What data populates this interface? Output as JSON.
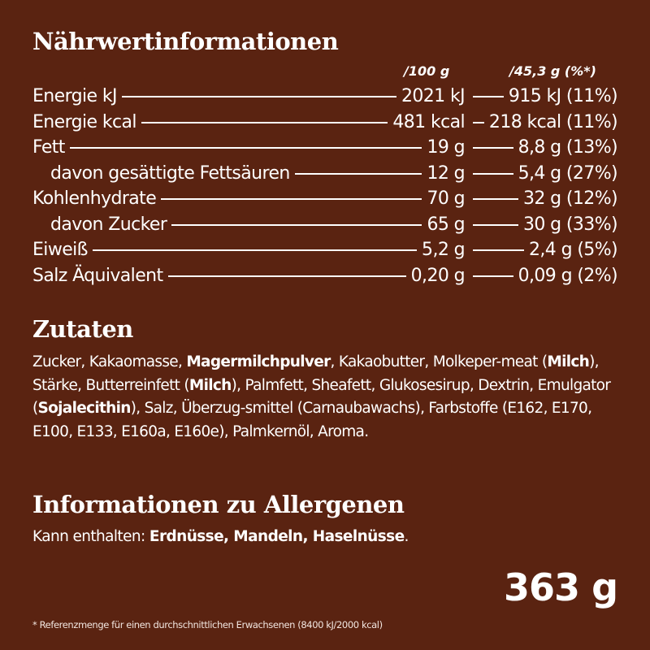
{
  "nutrition": {
    "title": "Nährwertinformationen",
    "col1_header": "/100 g",
    "col2_header": "/45,3 g (%*)",
    "rows": [
      {
        "label": "Energie kJ",
        "per100": "2021 kJ",
        "portion": "915 kJ (11%)",
        "indent": false
      },
      {
        "label": "Energie kcal",
        "per100": "481 kcal",
        "portion": "218 kcal (11%)",
        "indent": false
      },
      {
        "label": "Fett",
        "per100": "19 g",
        "portion": "8,8 g (13%)",
        "indent": false
      },
      {
        "label": "davon gesättigte Fettsäuren",
        "per100": "12 g",
        "portion": "5,4 g (27%)",
        "indent": true
      },
      {
        "label": "Kohlenhydrate",
        "per100": "70 g",
        "portion": "32 g (12%)",
        "indent": false
      },
      {
        "label": "davon Zucker",
        "per100": "65 g",
        "portion": "30 g (33%)",
        "indent": true
      },
      {
        "label": "Eiweiß",
        "per100": "5,2 g",
        "portion": "2,4 g (5%)",
        "indent": false
      },
      {
        "label": "Salz Äquivalent",
        "per100": "0,20 g",
        "portion": "0,09 g (2%)",
        "indent": false
      }
    ]
  },
  "ingredients": {
    "title": "Zutaten",
    "parts": [
      {
        "text": "Zucker, Kakaomasse, ",
        "bold": false
      },
      {
        "text": "Magermilchpulver",
        "bold": true
      },
      {
        "text": ", Kakaobutter, Molkeper-meat (",
        "bold": false
      },
      {
        "text": "Milch",
        "bold": true
      },
      {
        "text": "), Stärke, Butterreinfett (",
        "bold": false
      },
      {
        "text": "Milch",
        "bold": true
      },
      {
        "text": "), Palmfett, Sheafett, Glukosesirup,  Dextrin, Emulgator (",
        "bold": false
      },
      {
        "text": "Sojalecithin",
        "bold": true
      },
      {
        "text": "), Salz, Überzug-smittel (Carnaubawachs), Farbstoffe (E162, E170, E100, E133, E160a, E160e), Palmkernöl, Aroma.",
        "bold": false
      }
    ]
  },
  "allergens": {
    "title": "Informationen zu Allergenen",
    "prefix": "Kann enthalten: ",
    "items": "Erdnüsse, Mandeln, Haselnüsse",
    "suffix": "."
  },
  "net_weight": "363 g",
  "footnote": "* Referenzmenge für einen durchschnittlichen Erwachsenen (8400 kJ/2000 kcal)",
  "colors": {
    "background": "#5a2311",
    "text": "#ffffff"
  }
}
